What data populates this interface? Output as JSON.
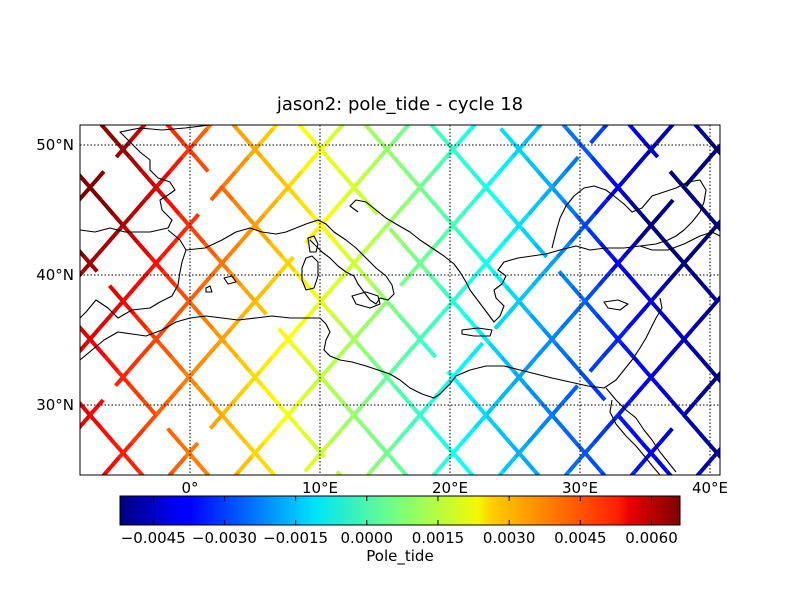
{
  "title": "jason2: pole_tide - cycle 18",
  "map": {
    "lon_range": [
      -8.5,
      40.8
    ],
    "lat_range": [
      24.5,
      51.5
    ],
    "graticule": {
      "lons": [
        0,
        10,
        20,
        30,
        40
      ],
      "lats": [
        30,
        40,
        50
      ]
    },
    "lat_labels": [
      "50°N",
      "40°N",
      "30°N"
    ],
    "lon_labels": [
      "0°",
      "10°E",
      "20°E",
      "30°E",
      "40°E"
    ]
  },
  "colorbar": {
    "label": "Pole_tide",
    "range": [
      -0.0052,
      0.0066
    ],
    "tick_values": [
      -0.0045,
      -0.003,
      -0.0015,
      0.0,
      0.0015,
      0.003,
      0.0045,
      0.006
    ],
    "tick_labels": [
      "−0.0045",
      "−0.0030",
      "−0.0015",
      "0.0000",
      "0.0015",
      "0.0030",
      "0.0045",
      "0.0060"
    ],
    "colormap": "jet"
  },
  "colors": {
    "coastline": "#000000",
    "grid": "#000000"
  }
}
